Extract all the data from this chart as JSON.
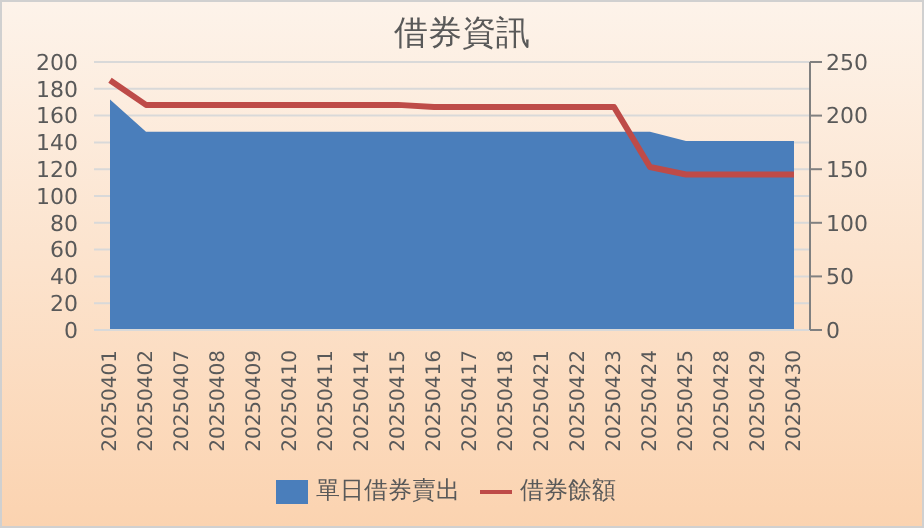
{
  "chart_data": {
    "type": "area",
    "title": "借券資訊",
    "categories": [
      "20250401",
      "20250402",
      "20250407",
      "20250408",
      "20250409",
      "20250410",
      "20250411",
      "20250414",
      "20250415",
      "20250416",
      "20250417",
      "20250418",
      "20250421",
      "20250422",
      "20250423",
      "20250424",
      "20250425",
      "20250428",
      "20250429",
      "20250430"
    ],
    "series": [
      {
        "name": "單日借券賣出",
        "color": "#4a7ebb",
        "values": [
          172,
          148,
          148,
          148,
          148,
          148,
          148,
          148,
          148,
          148,
          148,
          148,
          148,
          148,
          148,
          148,
          141,
          141,
          141,
          141
        ]
      },
      {
        "name": "借券餘額",
        "type": "line",
        "axis": "y2",
        "color": "#be4b48",
        "values": [
          233,
          210,
          210,
          210,
          210,
          210,
          210,
          210,
          210,
          208,
          208,
          208,
          208,
          208,
          208,
          152,
          145,
          145,
          145,
          145
        ]
      }
    ],
    "ylim": [
      0,
      200
    ],
    "yticks": [
      0,
      20,
      40,
      60,
      80,
      100,
      120,
      140,
      160,
      180,
      200
    ],
    "y2lim": [
      0,
      250
    ],
    "y2ticks": [
      0,
      50,
      100,
      150,
      200,
      250
    ],
    "grid": "y",
    "legend": "bottom",
    "marker": "none",
    "line_style": "solid"
  }
}
